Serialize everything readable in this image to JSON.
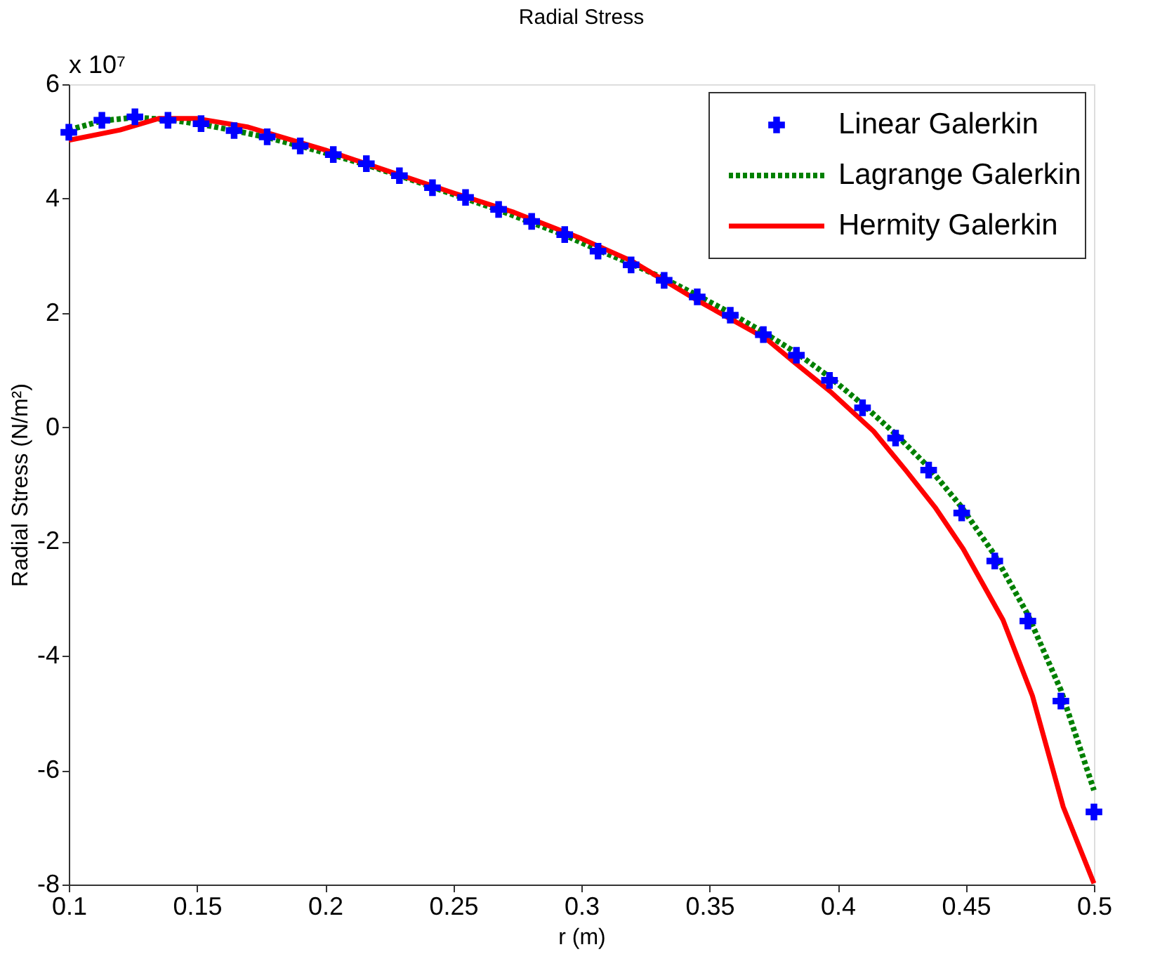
{
  "chart_data": {
    "type": "line",
    "title": "Radial Stress",
    "xlabel": "r (m)",
    "ylabel": "Radial Stress (N/m²)",
    "annotations": [
      "x 10⁷"
    ],
    "xlim": [
      0.1,
      0.5
    ],
    "xticks": [
      0.1,
      0.15,
      0.2,
      0.25,
      0.3,
      0.35,
      0.4,
      0.45,
      0.5
    ],
    "ylim": [
      -8,
      6
    ],
    "yticks": [
      -8,
      -6,
      -4,
      -2,
      0,
      2,
      4,
      6
    ],
    "grid": false,
    "legend": "top right",
    "series": [
      {
        "name": "Linear Galerkin",
        "type": "scatter",
        "marker": "cross",
        "color": "#0000ff",
        "x": [
          0.1,
          0.1129,
          0.1258,
          0.1387,
          0.1516,
          0.1645,
          0.1774,
          0.1903,
          0.2032,
          0.2161,
          0.229,
          0.2419,
          0.2548,
          0.2677,
          0.2806,
          0.2935,
          0.3065,
          0.3194,
          0.3323,
          0.3452,
          0.3581,
          0.371,
          0.3839,
          0.3968,
          0.4097,
          0.4226,
          0.4355,
          0.4484,
          0.4613,
          0.4742,
          0.4871,
          0.5
        ],
        "values": [
          5.16,
          5.37,
          5.43,
          5.37,
          5.31,
          5.19,
          5.08,
          4.92,
          4.77,
          4.61,
          4.4,
          4.19,
          4.02,
          3.81,
          3.6,
          3.37,
          3.08,
          2.84,
          2.57,
          2.28,
          1.96,
          1.62,
          1.26,
          0.82,
          0.34,
          -0.19,
          -0.75,
          -1.5,
          -2.34,
          -3.39,
          -4.79,
          -6.73
        ]
      },
      {
        "name": "Lagrange Galerkin",
        "line_style": "dotted",
        "color": "#008000",
        "x": [
          0.1,
          0.1129,
          0.1258,
          0.1387,
          0.1516,
          0.1645,
          0.1774,
          0.1903,
          0.2032,
          0.2161,
          0.229,
          0.2419,
          0.2548,
          0.2677,
          0.2806,
          0.2935,
          0.3065,
          0.3194,
          0.3323,
          0.3452,
          0.3581,
          0.371,
          0.3839,
          0.3968,
          0.4097,
          0.4226,
          0.4355,
          0.4484,
          0.4613,
          0.4742,
          0.4871,
          0.5
        ],
        "values": [
          5.2,
          5.36,
          5.42,
          5.38,
          5.3,
          5.19,
          5.07,
          4.92,
          4.76,
          4.59,
          4.4,
          4.2,
          4.0,
          3.8,
          3.58,
          3.36,
          3.1,
          2.86,
          2.6,
          2.31,
          2.0,
          1.66,
          1.3,
          0.88,
          0.4,
          -0.12,
          -0.7,
          -1.4,
          -2.24,
          -3.28,
          -4.6,
          -6.35
        ]
      },
      {
        "name": "Hermity Galerkin",
        "line_style": "solid",
        "color": "#ff0000",
        "x": [
          0.1,
          0.12,
          0.135,
          0.15,
          0.17,
          0.2,
          0.25,
          0.2737,
          0.3,
          0.32,
          0.346,
          0.372,
          0.383,
          0.397,
          0.414,
          0.4265,
          0.438,
          0.449,
          0.4645,
          0.476,
          0.488,
          0.5
        ],
        "values": [
          5.02,
          5.2,
          5.4,
          5.4,
          5.25,
          4.85,
          4.1,
          3.76,
          3.3,
          2.9,
          2.2,
          1.55,
          1.14,
          0.63,
          -0.07,
          -0.75,
          -1.4,
          -2.13,
          -3.37,
          -4.7,
          -6.64,
          -7.98
        ]
      }
    ]
  }
}
